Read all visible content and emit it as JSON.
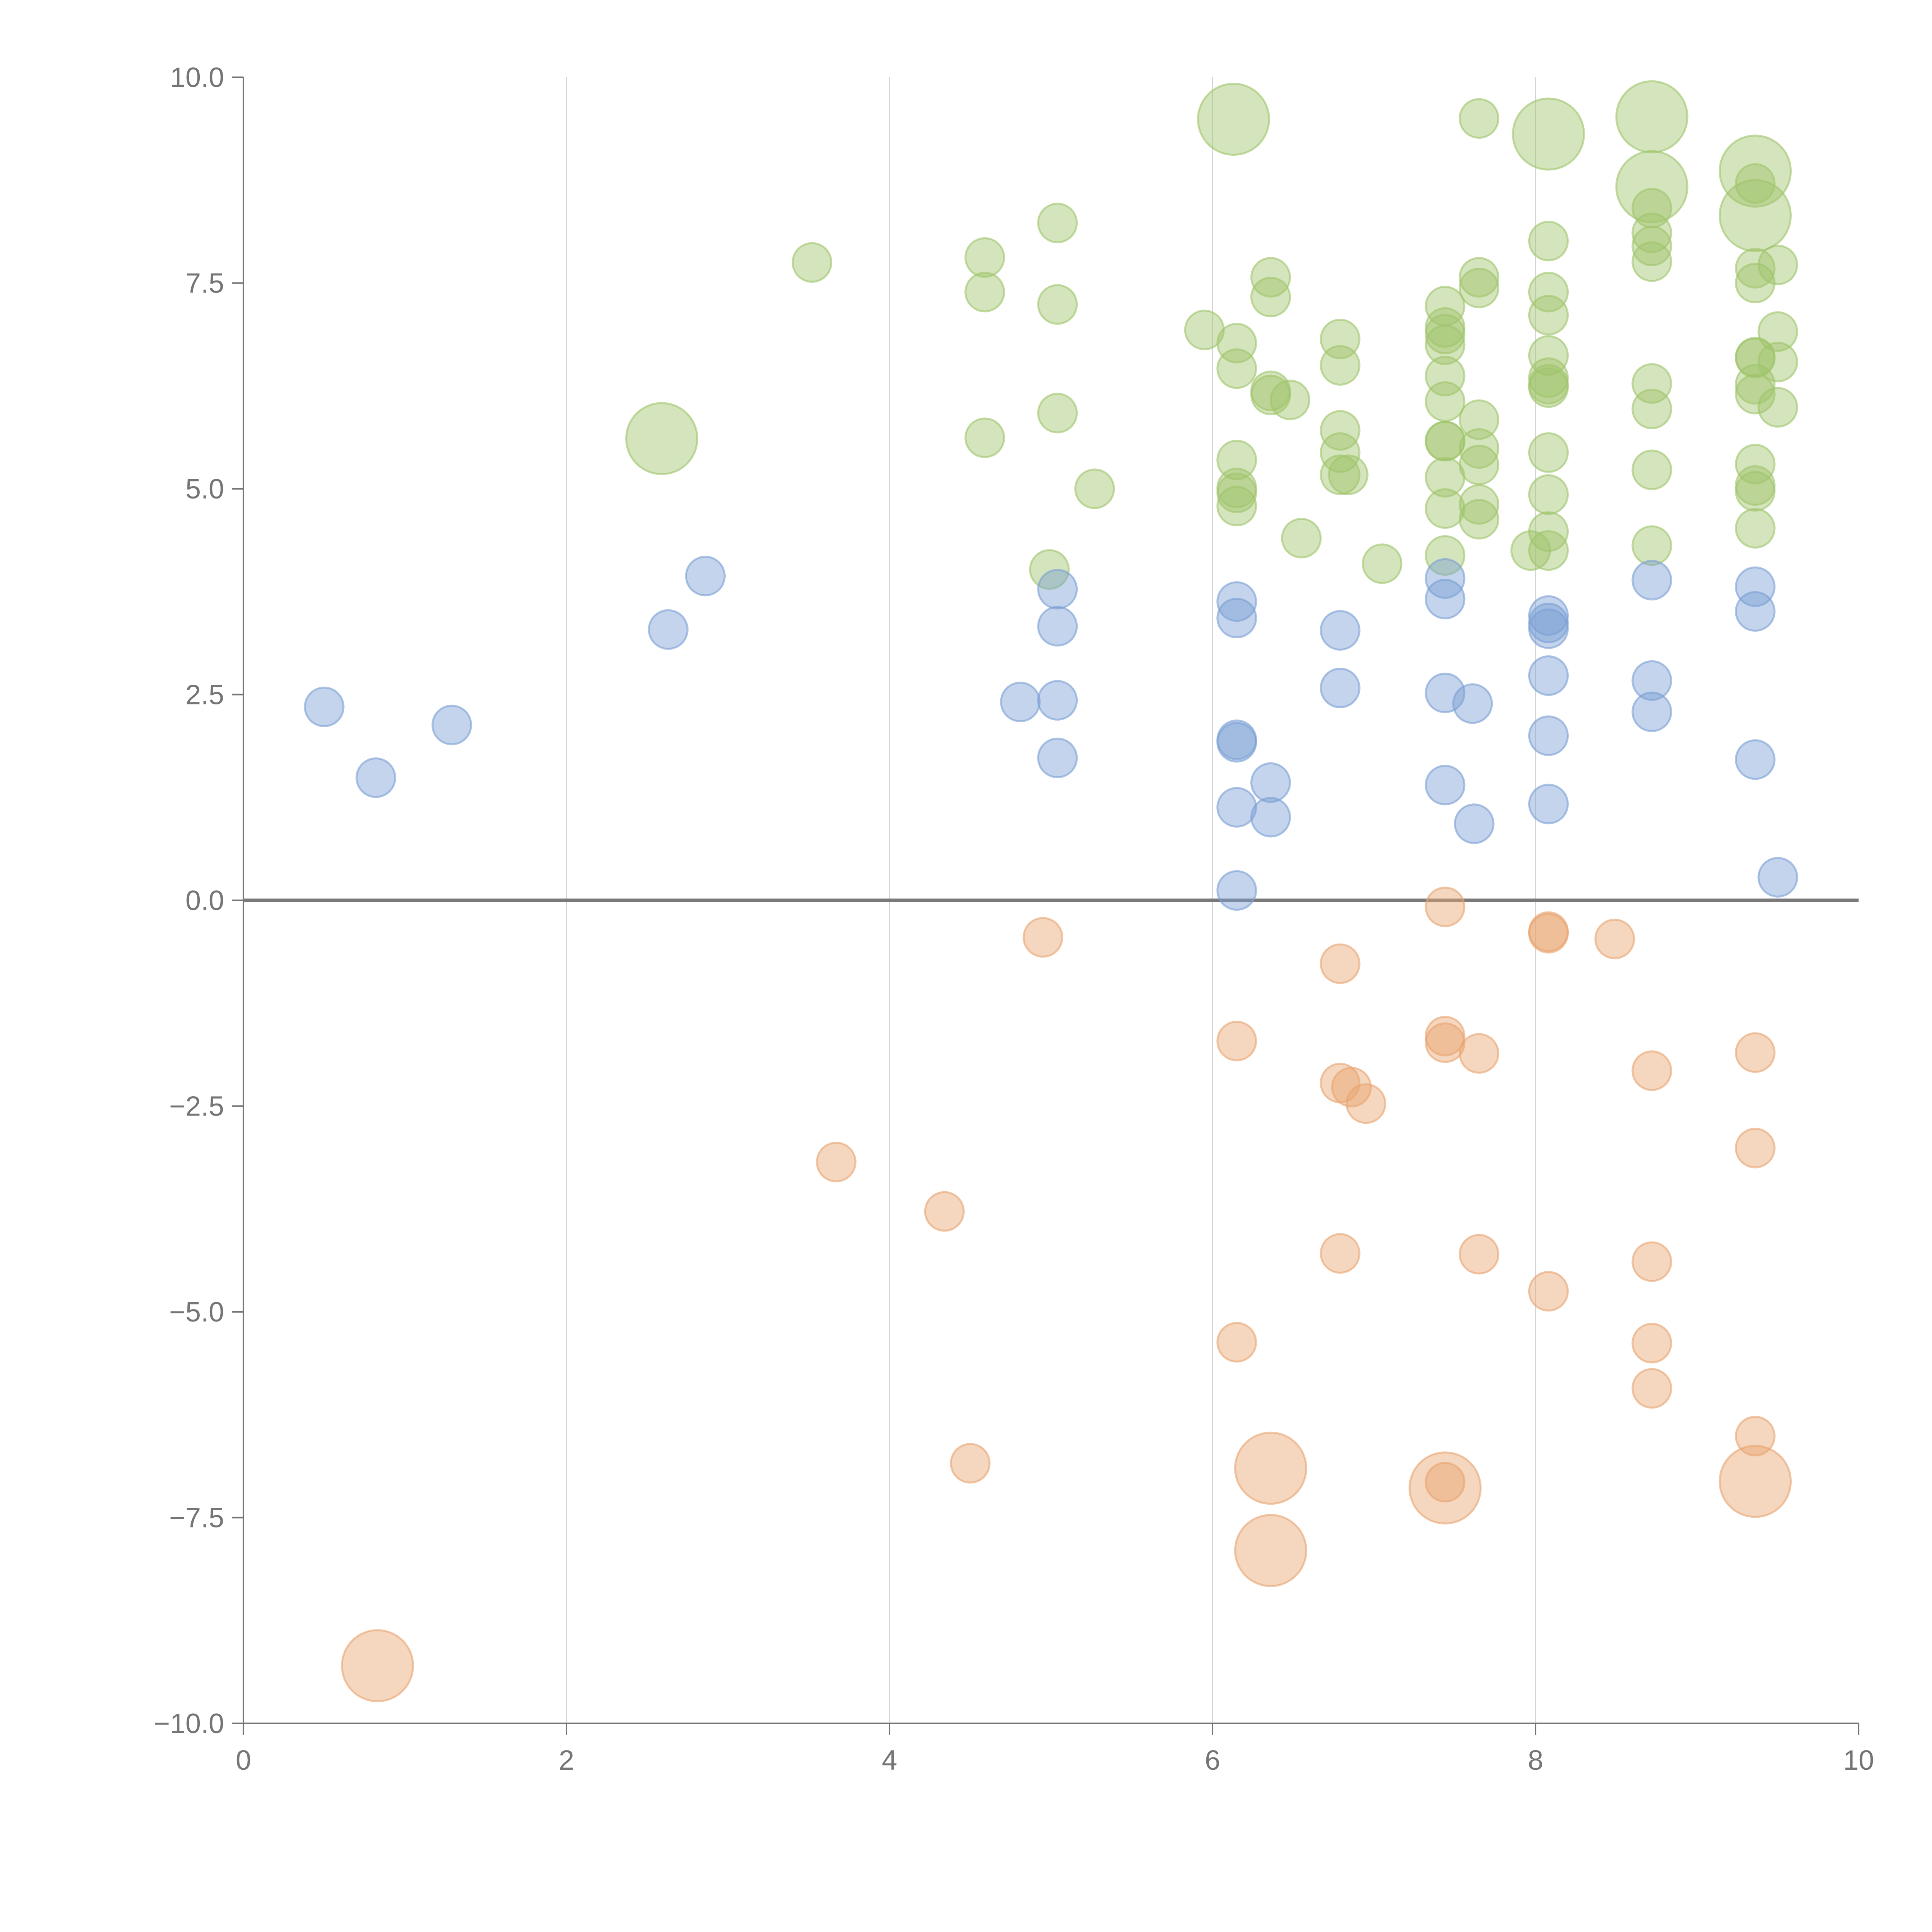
{
  "chart_data": {
    "type": "scatter",
    "title": "",
    "xlabel": "",
    "ylabel": "",
    "xlim": [
      0,
      10
    ],
    "ylim": [
      -10,
      10
    ],
    "x_ticks": [
      "0",
      "2",
      "4",
      "6",
      "8",
      "10"
    ],
    "y_ticks": [
      "10.0",
      "7.5",
      "5.0",
      "2.5",
      "0.0",
      "−2.5",
      "−5.0",
      "−7.5",
      "−10.0"
    ],
    "x_tick_values": [
      0,
      2,
      4,
      6,
      8,
      10
    ],
    "y_tick_values": [
      10,
      7.5,
      5,
      2.5,
      0,
      -2.5,
      -5,
      -7.5,
      -10
    ],
    "grid": "vertical",
    "reference_line_y": 0,
    "legend": "none",
    "series": [
      {
        "name": "green",
        "color": "#9fc46a",
        "points": [
          [
            3.52,
            7.75,
            1
          ],
          [
            4.59,
            7.81,
            1
          ],
          [
            4.59,
            7.39,
            1
          ],
          [
            4.59,
            5.62,
            1
          ],
          [
            5.04,
            8.23,
            1
          ],
          [
            5.04,
            7.24,
            1
          ],
          [
            5.04,
            5.92,
            1
          ],
          [
            5.27,
            5.0,
            1
          ],
          [
            4.99,
            4.02,
            1
          ],
          [
            2.59,
            5.61,
            4
          ],
          [
            5.95,
            6.93,
            1
          ],
          [
            6.15,
            6.77,
            1
          ],
          [
            6.15,
            6.46,
            1
          ],
          [
            6.15,
            5.35,
            1
          ],
          [
            6.15,
            5.01,
            1
          ],
          [
            6.15,
            4.95,
            1
          ],
          [
            6.15,
            4.79,
            1
          ],
          [
            6.36,
            7.57,
            1
          ],
          [
            6.36,
            7.33,
            1
          ],
          [
            6.36,
            6.19,
            1
          ],
          [
            6.36,
            6.14,
            1
          ],
          [
            6.48,
            6.08,
            1
          ],
          [
            6.55,
            4.4,
            1
          ],
          [
            6.79,
            6.82,
            1
          ],
          [
            6.79,
            6.5,
            1
          ],
          [
            6.79,
            5.71,
            1
          ],
          [
            6.79,
            5.44,
            1
          ],
          [
            6.79,
            5.17,
            1
          ],
          [
            6.84,
            5.17,
            1
          ],
          [
            7.05,
            4.09,
            1
          ],
          [
            7.44,
            7.22,
            1
          ],
          [
            7.44,
            6.96,
            1
          ],
          [
            7.44,
            6.88,
            1
          ],
          [
            7.44,
            6.75,
            1
          ],
          [
            7.44,
            6.37,
            1
          ],
          [
            7.44,
            6.06,
            1
          ],
          [
            7.44,
            5.58,
            1
          ],
          [
            7.44,
            5.58,
            1
          ],
          [
            7.44,
            5.14,
            1
          ],
          [
            7.44,
            4.76,
            1
          ],
          [
            7.44,
            4.19,
            1
          ],
          [
            7.65,
            7.57,
            1
          ],
          [
            7.65,
            7.44,
            1
          ],
          [
            7.65,
            5.84,
            1
          ],
          [
            7.65,
            5.49,
            1
          ],
          [
            7.65,
            5.29,
            1
          ],
          [
            7.65,
            4.81,
            1
          ],
          [
            7.65,
            4.63,
            1
          ],
          [
            7.65,
            9.5,
            1
          ],
          [
            8.08,
            8.01,
            1
          ],
          [
            8.08,
            7.39,
            1
          ],
          [
            8.08,
            7.11,
            1
          ],
          [
            8.08,
            6.62,
            1
          ],
          [
            8.08,
            6.35,
            1
          ],
          [
            8.08,
            6.27,
            1
          ],
          [
            8.08,
            6.23,
            1
          ],
          [
            8.08,
            5.44,
            1
          ],
          [
            8.08,
            4.93,
            1
          ],
          [
            8.08,
            4.48,
            1
          ],
          [
            8.08,
            4.25,
            1
          ],
          [
            7.97,
            4.25,
            1
          ],
          [
            8.72,
            8.41,
            1
          ],
          [
            8.72,
            8.11,
            1
          ],
          [
            8.72,
            7.95,
            1
          ],
          [
            8.72,
            7.76,
            1
          ],
          [
            8.72,
            6.28,
            1
          ],
          [
            8.72,
            5.97,
            1
          ],
          [
            8.72,
            5.23,
            1
          ],
          [
            8.72,
            4.31,
            1
          ],
          [
            9.36,
            8.71,
            1
          ],
          [
            9.36,
            7.68,
            1
          ],
          [
            9.36,
            7.5,
            1
          ],
          [
            9.36,
            6.6,
            1
          ],
          [
            9.36,
            6.59,
            1
          ],
          [
            9.36,
            6.27,
            1
          ],
          [
            9.36,
            6.15,
            1
          ],
          [
            9.36,
            5.3,
            1
          ],
          [
            9.36,
            5.04,
            1
          ],
          [
            9.36,
            4.97,
            1
          ],
          [
            9.36,
            4.52,
            1
          ],
          [
            9.5,
            7.72,
            1
          ],
          [
            9.5,
            6.91,
            1
          ],
          [
            9.5,
            6.54,
            1
          ],
          [
            9.5,
            5.99,
            1
          ],
          [
            6.13,
            9.49,
            4
          ],
          [
            8.08,
            9.31,
            4
          ],
          [
            8.72,
            9.52,
            4
          ],
          [
            8.72,
            8.67,
            4
          ],
          [
            9.36,
            8.86,
            4
          ],
          [
            9.36,
            8.32,
            4
          ]
        ]
      },
      {
        "name": "blue",
        "color": "#7a9fd4",
        "points": [
          [
            0.5,
            2.35,
            1
          ],
          [
            0.82,
            1.49,
            1
          ],
          [
            1.29,
            2.13,
            1
          ],
          [
            2.63,
            3.29,
            1
          ],
          [
            2.86,
            3.94,
            1
          ],
          [
            4.81,
            2.41,
            1
          ],
          [
            5.04,
            3.78,
            1
          ],
          [
            5.04,
            3.33,
            1
          ],
          [
            5.04,
            2.43,
            1
          ],
          [
            5.04,
            1.73,
            1
          ],
          [
            6.15,
            3.63,
            1
          ],
          [
            6.15,
            3.43,
            1
          ],
          [
            6.15,
            1.95,
            1
          ],
          [
            6.15,
            1.92,
            1
          ],
          [
            6.15,
            1.13,
            1
          ],
          [
            6.15,
            0.12,
            1
          ],
          [
            6.36,
            1.43,
            1
          ],
          [
            6.36,
            1.01,
            1
          ],
          [
            6.79,
            3.28,
            1
          ],
          [
            6.79,
            2.58,
            1
          ],
          [
            7.44,
            3.91,
            1
          ],
          [
            7.44,
            3.66,
            1
          ],
          [
            7.44,
            2.52,
            1
          ],
          [
            7.44,
            1.4,
            1
          ],
          [
            7.61,
            2.39,
            1
          ],
          [
            7.62,
            0.93,
            1
          ],
          [
            8.08,
            3.46,
            1
          ],
          [
            8.08,
            3.37,
            1
          ],
          [
            8.08,
            3.3,
            1
          ],
          [
            8.08,
            2.73,
            1
          ],
          [
            8.08,
            2.0,
            1
          ],
          [
            8.08,
            1.17,
            1
          ],
          [
            8.72,
            3.89,
            1
          ],
          [
            8.72,
            2.67,
            1
          ],
          [
            8.72,
            2.29,
            1
          ],
          [
            9.36,
            3.81,
            1
          ],
          [
            9.36,
            3.51,
            1
          ],
          [
            9.36,
            1.71,
            1
          ],
          [
            9.5,
            0.28,
            1
          ]
        ]
      },
      {
        "name": "orange",
        "color": "#e8a36f",
        "points": [
          [
            4.95,
            -0.45,
            1
          ],
          [
            3.67,
            -3.18,
            1
          ],
          [
            4.34,
            -3.78,
            1
          ],
          [
            4.5,
            -6.84,
            1
          ],
          [
            6.15,
            -1.71,
            1
          ],
          [
            6.15,
            -5.37,
            1
          ],
          [
            6.79,
            -0.77,
            1
          ],
          [
            6.79,
            -2.22,
            1
          ],
          [
            6.86,
            -2.27,
            1
          ],
          [
            6.95,
            -2.47,
            1
          ],
          [
            6.79,
            -4.29,
            1
          ],
          [
            7.44,
            -0.08,
            1
          ],
          [
            7.44,
            -1.65,
            1
          ],
          [
            7.44,
            -1.73,
            1
          ],
          [
            7.44,
            -7.07,
            1
          ],
          [
            7.65,
            -1.86,
            1
          ],
          [
            7.65,
            -4.3,
            1
          ],
          [
            8.08,
            -0.38,
            1
          ],
          [
            8.08,
            -0.4,
            1
          ],
          [
            8.08,
            -4.75,
            1
          ],
          [
            8.49,
            -0.47,
            1
          ],
          [
            8.72,
            -2.07,
            1
          ],
          [
            8.72,
            -4.39,
            1
          ],
          [
            8.72,
            -5.38,
            1
          ],
          [
            8.72,
            -5.93,
            1
          ],
          [
            9.36,
            -1.85,
            1
          ],
          [
            9.36,
            -3.01,
            1
          ],
          [
            9.36,
            -6.51,
            1
          ],
          [
            0.83,
            -9.3,
            4
          ],
          [
            6.36,
            -6.9,
            4
          ],
          [
            6.36,
            -7.9,
            4
          ],
          [
            7.44,
            -7.14,
            4
          ],
          [
            9.36,
            -7.06,
            4
          ]
        ]
      }
    ]
  }
}
